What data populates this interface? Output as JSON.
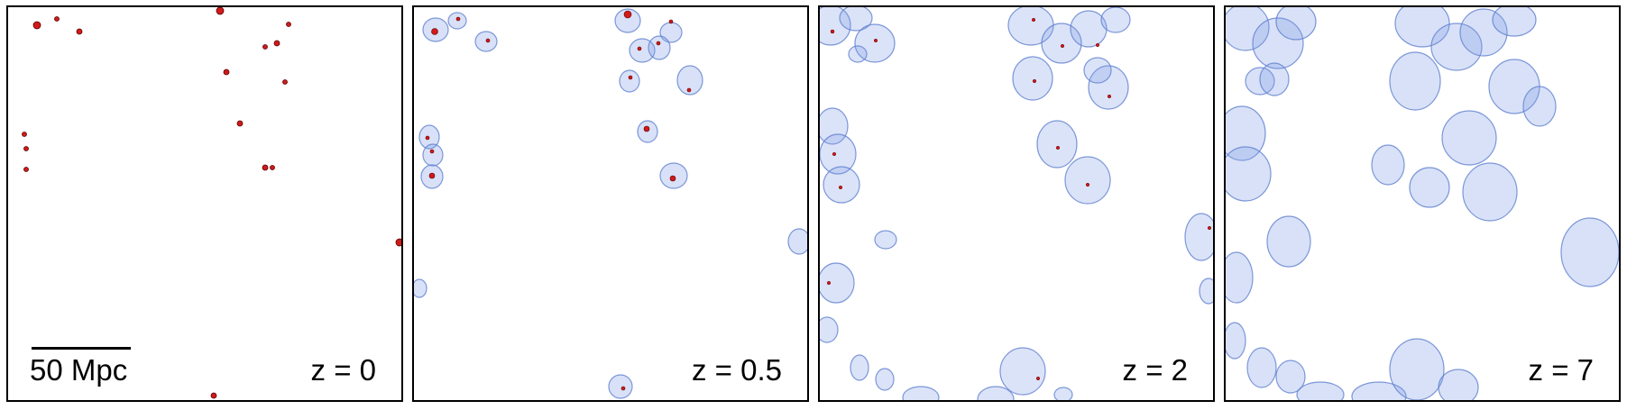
{
  "scale_bar": {
    "label": "50 Mpc"
  },
  "panels": [
    {
      "label": "z = 0"
    },
    {
      "label": "z = 0.5"
    },
    {
      "label": "z = 2"
    },
    {
      "label": "z = 7"
    }
  ],
  "colors": {
    "halo": "#d11a1a",
    "halo_edge": "#5a0000",
    "region_fill": "#7d9ce6",
    "region_edge": "#5f7fd0"
  }
}
